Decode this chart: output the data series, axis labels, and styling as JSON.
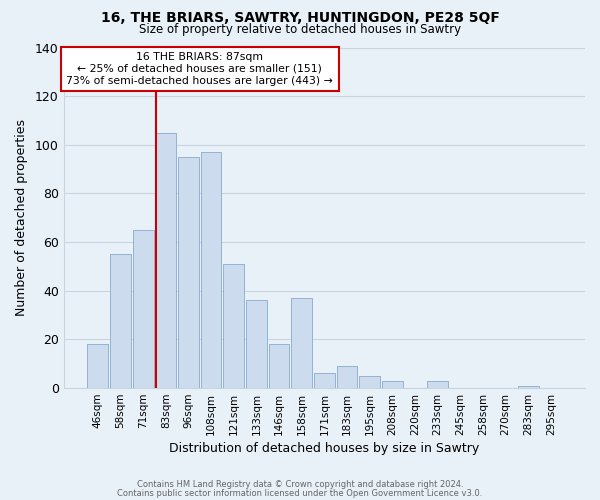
{
  "title1": "16, THE BRIARS, SAWTRY, HUNTINGDON, PE28 5QF",
  "title2": "Size of property relative to detached houses in Sawtry",
  "xlabel": "Distribution of detached houses by size in Sawtry",
  "ylabel": "Number of detached properties",
  "bar_labels": [
    "46sqm",
    "58sqm",
    "71sqm",
    "83sqm",
    "96sqm",
    "108sqm",
    "121sqm",
    "133sqm",
    "146sqm",
    "158sqm",
    "171sqm",
    "183sqm",
    "195sqm",
    "208sqm",
    "220sqm",
    "233sqm",
    "245sqm",
    "258sqm",
    "270sqm",
    "283sqm",
    "295sqm"
  ],
  "bar_values": [
    18,
    55,
    65,
    105,
    95,
    97,
    51,
    36,
    18,
    37,
    6,
    9,
    5,
    3,
    0,
    3,
    0,
    0,
    0,
    1,
    0
  ],
  "bar_color": "#ccdcee",
  "bar_edge_color": "#88aacc",
  "vline_color": "#cc0000",
  "annotation_title": "16 THE BRIARS: 87sqm",
  "annotation_line1": "← 25% of detached houses are smaller (151)",
  "annotation_line2": "73% of semi-detached houses are larger (443) →",
  "annotation_box_edgecolor": "#cc0000",
  "bg_color": "#e8f0f8",
  "grid_color": "#c8d4e0",
  "ylim": [
    0,
    140
  ],
  "yticks": [
    0,
    20,
    40,
    60,
    80,
    100,
    120,
    140
  ],
  "footer1": "Contains HM Land Registry data © Crown copyright and database right 2024.",
  "footer2": "Contains public sector information licensed under the Open Government Licence v3.0."
}
